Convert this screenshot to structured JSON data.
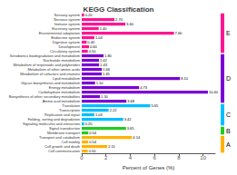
{
  "chart_data": {
    "type": "bar",
    "orientation": "horizontal",
    "title": "KEGG Classification",
    "xlabel": "Percent of Genes (%)",
    "categories": [
      "Sensory system",
      "Nervous system",
      "Immune system",
      "Excretory system",
      "Environmental adaptation",
      "Endocrine system",
      "Digestive system",
      "Development",
      "Circulatory system",
      "Xenobiotics biodegradation and metabolism",
      "Nucleotide metabolism",
      "Metabolism of terpenoids and polyketides",
      "Metabolism of other amino acids",
      "Metabolism of cofactors and vitamins",
      "Lipid metabolism",
      "Glycan biosynthesis and metabolism",
      "Energy metabolism",
      "Carbohydrate metabolism",
      "Biosynthesis of other secondary metabolites",
      "Amino acid metabolism",
      "Translation",
      "Transcription",
      "Replication and repair",
      "Folding, sorting and degradation",
      "Signaling molecules and interaction",
      "Signal transduction",
      "Membrane transport",
      "Transport and catabolism",
      "Cell motility",
      "Cell growth and death",
      "Cell communication"
    ],
    "values": [
      0.2,
      2.7,
      3.6,
      1.4,
      7.6,
      1.04,
      0.4,
      0.6,
      0.5,
      1.8,
      1.42,
      1.43,
      1.66,
      1.65,
      8.1,
      1.1,
      4.73,
      10.4,
      1.5,
      3.68,
      5.65,
      2.22,
      1.04,
      3.42,
      0.2,
      3.65,
      0.54,
      4.14,
      0.54,
      2.11,
      0.5
    ],
    "value_labels": [
      "0.20",
      "2.70",
      "3.60",
      "1.40",
      "7.60",
      "1.04",
      "0.40",
      "0.60",
      "0.50",
      "1.80",
      "1.42",
      "1.43",
      "1.66",
      "1.65",
      "8.10",
      "1.10",
      "4.73",
      "10.40",
      "1.50",
      "3.68",
      "5.65",
      "2.22",
      "1.04",
      "3.42",
      "0.20",
      "3.65",
      "0.54",
      "4.14",
      "0.54",
      "2.11",
      "0.50"
    ],
    "data_labels": true,
    "colors": [
      "#FF1493",
      "#FF1493",
      "#FF1493",
      "#FF1493",
      "#FF1493",
      "#FF1493",
      "#FF1493",
      "#FF1493",
      "#FF1493",
      "#7B00D4",
      "#7B00D4",
      "#7B00D4",
      "#7B00D4",
      "#7B00D4",
      "#7B00D4",
      "#7B00D4",
      "#7B00D4",
      "#7B00D4",
      "#7B00D4",
      "#7B00D4",
      "#00BFFF",
      "#00BFFF",
      "#00BFFF",
      "#00BFFF",
      "#00BFFF",
      "#22CC22",
      "#22CC22",
      "#FFB300",
      "#FFB300",
      "#FFB300",
      "#FFB300"
    ],
    "annotations": [
      {
        "text": "E",
        "color": "#FF1493",
        "from": "Sensory system",
        "to": "Circulatory system"
      },
      {
        "text": "D",
        "color": "#7B00D4",
        "from": "Xenobiotics biodegradation and metabolism",
        "to": "Amino acid metabolism"
      },
      {
        "text": "C",
        "color": "#00BFFF",
        "from": "Translation",
        "to": "Signaling molecules and interaction"
      },
      {
        "text": "B",
        "color": "#22CC22",
        "from": "Signal transduction",
        "to": "Membrane transport"
      },
      {
        "text": "A",
        "color": "#FFB300",
        "from": "Transport and catabolism",
        "to": "Cell communication"
      }
    ],
    "xlim": [
      0,
      11
    ],
    "xticks": [
      0,
      2,
      4,
      6,
      8,
      10
    ],
    "grid": false
  }
}
